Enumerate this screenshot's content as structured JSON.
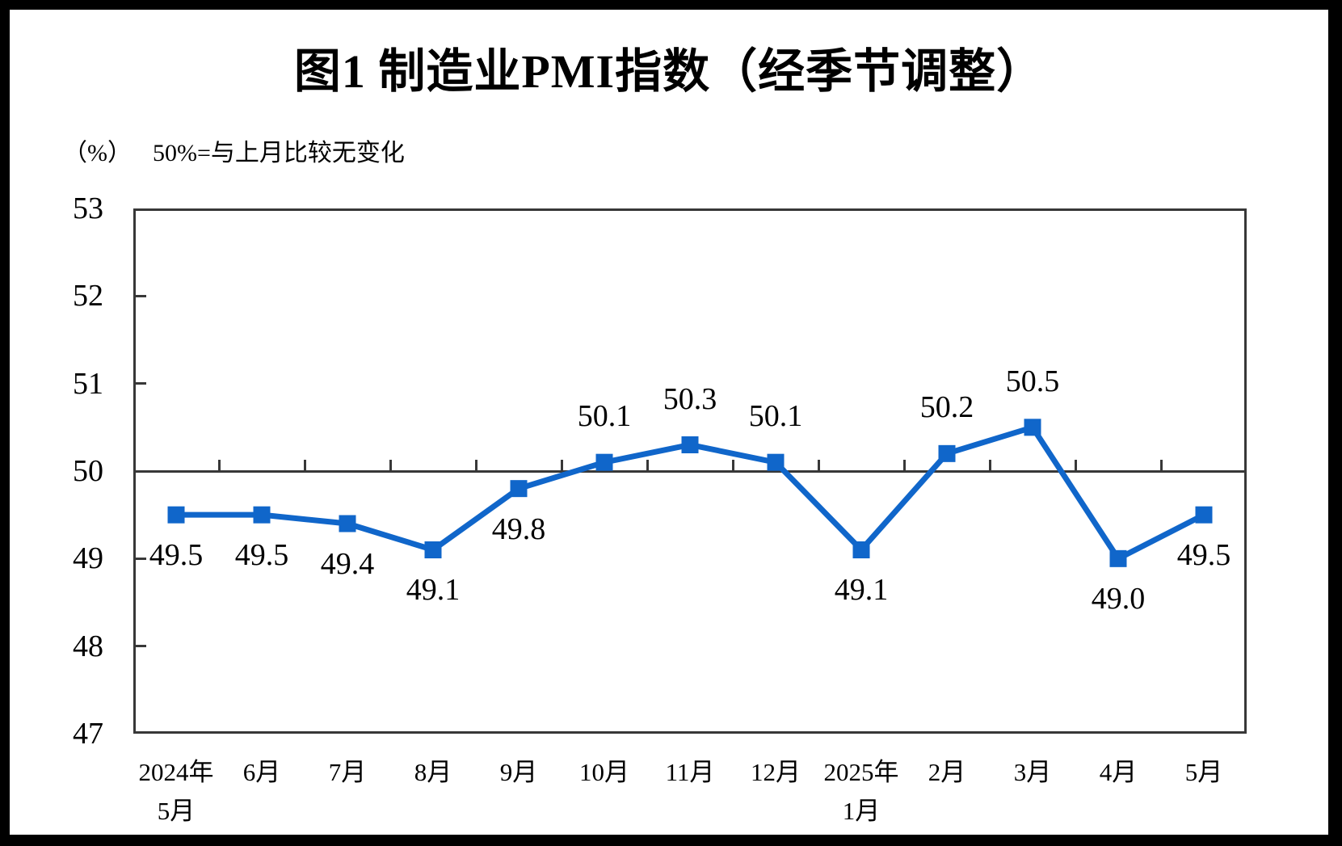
{
  "figure": {
    "title": "图1  制造业PMI指数（经季节调整）",
    "unit_note": "（%）",
    "subtitle": "50%=与上月比较无变化"
  },
  "chart_data": {
    "type": "line",
    "title": "图1 制造业PMI指数（经季节调整）",
    "subtitle": "50%=与上月比较无变化",
    "unit": "%",
    "categories": [
      "2024年\n5月",
      "6月",
      "7月",
      "8月",
      "9月",
      "10月",
      "11月",
      "12月",
      "2025年\n1月",
      "2月",
      "3月",
      "4月",
      "5月"
    ],
    "series": [
      {
        "name": "制造业PMI",
        "values": [
          49.5,
          49.5,
          49.4,
          49.1,
          49.8,
          50.1,
          50.3,
          50.1,
          49.1,
          50.2,
          50.5,
          49.0,
          49.5
        ]
      }
    ],
    "data_labels": [
      "49.5",
      "49.5",
      "49.4",
      "49.1",
      "49.8",
      "50.1",
      "50.3",
      "50.1",
      "49.1",
      "50.2",
      "50.5",
      "49.0",
      "49.5"
    ],
    "ylim": [
      47,
      53
    ],
    "yticks": [
      53,
      52,
      51,
      50,
      49,
      48,
      47
    ],
    "baseline": 50,
    "baseline_note": "50%=与上月比较无变化",
    "grid": false,
    "legend_position": "none",
    "line_color": "#1066CA",
    "marker": "square",
    "axis_color": "#383838",
    "text_color": "#000000"
  }
}
